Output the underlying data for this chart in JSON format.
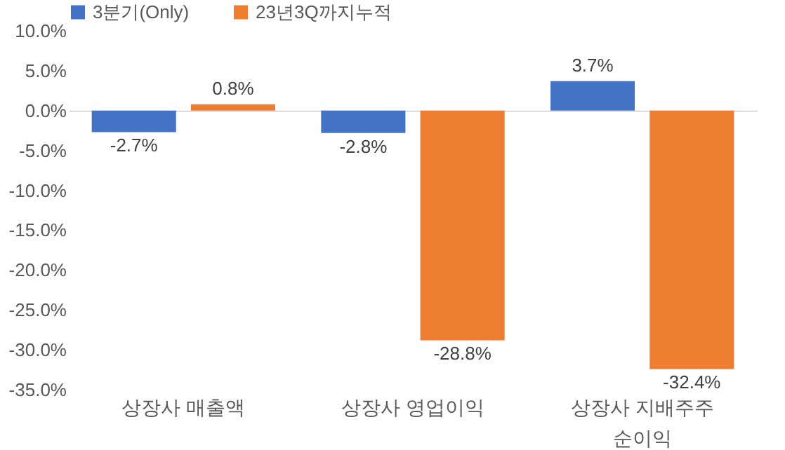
{
  "chart_data": {
    "type": "bar",
    "categories": [
      "상장사 매출액",
      "상장사 영업이익",
      "상장사 지배주주 순이익"
    ],
    "series": [
      {
        "name": "3분기(Only)",
        "color": "#4472c4",
        "values": [
          -2.7,
          -2.8,
          3.7
        ],
        "value_labels": [
          "-2.7%",
          "-2.8%",
          "3.7%"
        ]
      },
      {
        "name": "23년3Q까지누적",
        "color": "#ed7d31",
        "values": [
          0.8,
          -28.8,
          -32.4
        ],
        "value_labels": [
          "0.8%",
          "-28.8%",
          "-32.4%"
        ]
      }
    ],
    "ylim": [
      -35,
      10
    ],
    "yticks": [
      {
        "value": 10,
        "label": "10.0%"
      },
      {
        "value": 5,
        "label": "5.0%"
      },
      {
        "value": 0,
        "label": "0.0%"
      },
      {
        "value": -5,
        "label": "-5.0%"
      },
      {
        "value": -10,
        "label": "-10.0%"
      },
      {
        "value": -15,
        "label": "-15.0%"
      },
      {
        "value": -20,
        "label": "-20.0%"
      },
      {
        "value": -25,
        "label": "-25.0%"
      },
      {
        "value": -30,
        "label": "-30.0%"
      },
      {
        "value": -35,
        "label": "-35.0%"
      }
    ],
    "legend": "top"
  }
}
